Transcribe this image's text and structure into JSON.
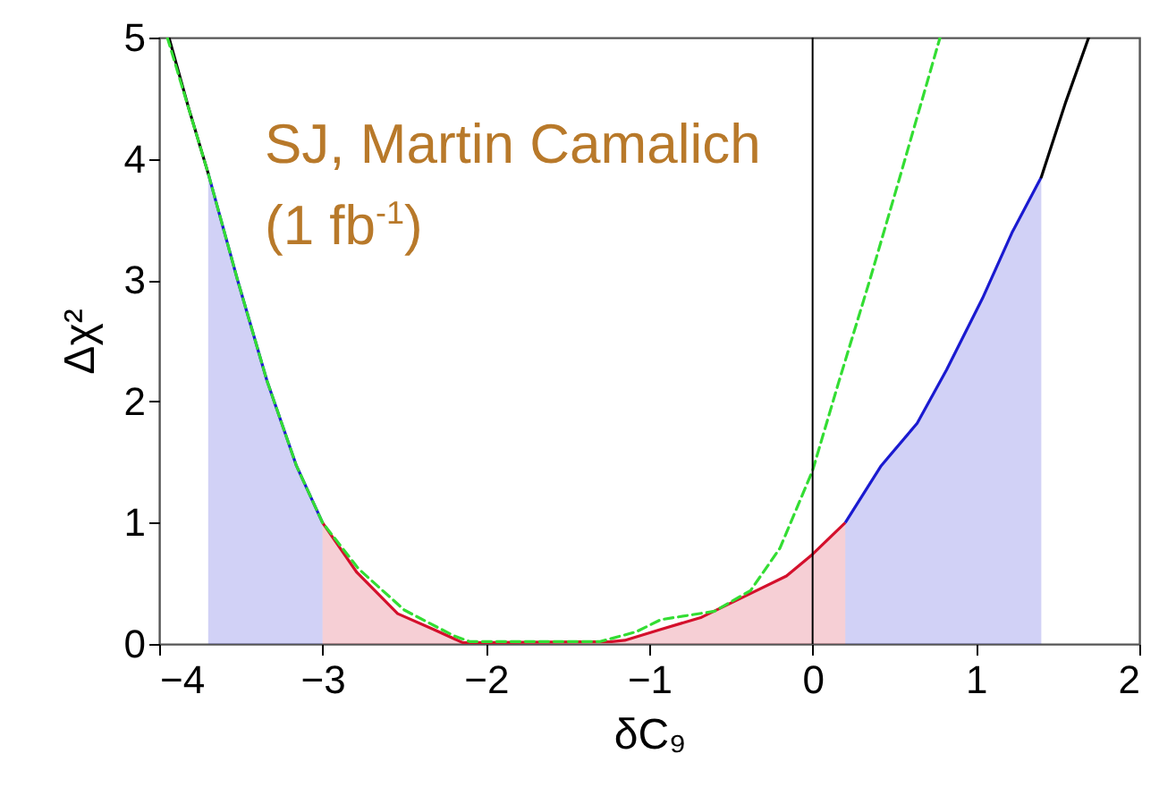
{
  "chart_data": {
    "type": "line",
    "xlabel": "δC₉",
    "ylabel": "Δχ²",
    "annotations": [
      "SJ, Martin Camalich",
      "(1 fb$^{-1}$)"
    ],
    "xlim": [
      -4,
      2
    ],
    "ylim": [
      0,
      5
    ],
    "xticks": [
      -4,
      -3,
      -2,
      -1,
      0,
      1,
      2
    ],
    "yticks": [
      0,
      1,
      2,
      3,
      4,
      5
    ],
    "ref_lines": [
      {
        "axis": "x",
        "value": 0,
        "color": "#000000"
      }
    ],
    "series": [
      {
        "type": "area",
        "color": "#1a1ad0",
        "x": [
          -3.7,
          -3.52,
          -3.34,
          -3.16,
          -3.0
        ],
        "values": [
          3.88,
          3.0,
          2.17,
          1.47,
          1.0
        ]
      },
      {
        "type": "area",
        "color": "#d4102c",
        "x": [
          -3.0,
          -2.79,
          -2.54,
          -2.32,
          -2.14,
          -1.23,
          -1.15,
          -0.93,
          -0.68,
          -0.42,
          -0.16,
          0,
          0.2
        ],
        "values": [
          1.0,
          0.59,
          0.25,
          0.12,
          0.01,
          0.02,
          0.03,
          0.12,
          0.22,
          0.39,
          0.56,
          0.74,
          1.0
        ]
      },
      {
        "type": "area",
        "color": "#1a1ad0",
        "x": [
          0.2,
          0.42,
          0.64,
          0.82,
          1.04,
          1.22,
          1.4
        ],
        "values": [
          1.0,
          1.47,
          1.82,
          2.26,
          2.85,
          3.39,
          3.85
        ]
      },
      {
        "color": "#000000",
        "x": [
          -3.94,
          -3.82,
          -3.7
        ],
        "values": [
          5.0,
          4.42,
          3.88
        ]
      },
      {
        "color": "#000000",
        "x": [
          1.4,
          1.55,
          1.69
        ],
        "values": [
          3.85,
          4.47,
          5.0
        ]
      },
      {
        "line_style": "dashed",
        "color": "#33dd33",
        "x": [
          -3.95,
          -3.7,
          -3.52,
          -3.34,
          -3.16,
          -3.0,
          -2.78,
          -2.5,
          -2.2,
          -2.1,
          -1.3,
          -1.08,
          -0.93,
          -0.6,
          -0.38,
          -0.2,
          0,
          0.16,
          0.35,
          0.53,
          0.78
        ],
        "values": [
          5.0,
          3.88,
          3.0,
          2.17,
          1.47,
          1.0,
          0.62,
          0.28,
          0.07,
          0.02,
          0.02,
          0.1,
          0.2,
          0.27,
          0.44,
          0.79,
          1.43,
          2.16,
          3.0,
          3.83,
          5.0
        ]
      }
    ]
  }
}
